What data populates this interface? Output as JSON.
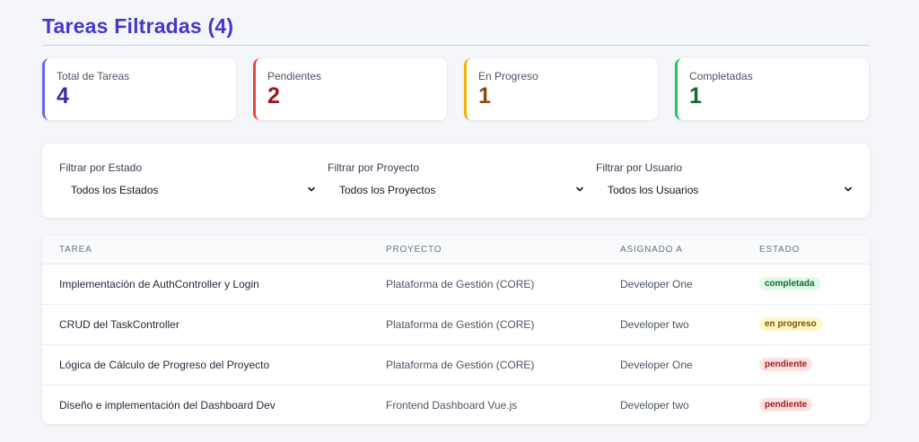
{
  "header": {
    "title": "Tareas Filtradas (4)"
  },
  "stats": [
    {
      "label": "Total de Tareas",
      "value": "4"
    },
    {
      "label": "Pendientes",
      "value": "2"
    },
    {
      "label": "En Progreso",
      "value": "1"
    },
    {
      "label": "Completadas",
      "value": "1"
    }
  ],
  "colors": {
    "title": "#4338ca",
    "total": "#6366f1",
    "pendiente": "#ef4444",
    "progreso": "#eab308",
    "completada": "#22c55e"
  },
  "filters": [
    {
      "label": "Filtrar por Estado",
      "selected": "Todos los Estados"
    },
    {
      "label": "Filtrar por Proyecto",
      "selected": "Todos los Proyectos"
    },
    {
      "label": "Filtrar por Usuario",
      "selected": "Todos los Usuarios"
    }
  ],
  "table": {
    "headers": [
      "TAREA",
      "PROYECTO",
      "ASIGNADO A",
      "ESTADO"
    ],
    "rows": [
      {
        "task": "Implementación de AuthController y Login",
        "project": "Plataforma de Gestión (CORE)",
        "assignee": "Developer One",
        "status": "completada"
      },
      {
        "task": "CRUD del TaskController",
        "project": "Plataforma de Gestión (CORE)",
        "assignee": "Developer two",
        "status": "en progreso"
      },
      {
        "task": "Lógica de Cálculo de Progreso del Proyecto",
        "project": "Plataforma de Gestión (CORE)",
        "assignee": "Developer One",
        "status": "pendiente"
      },
      {
        "task": "Diseño e implementación del Dashboard Dev",
        "project": "Frontend Dashboard Vue.js",
        "assignee": "Developer two",
        "status": "pendiente"
      }
    ]
  },
  "icons": {
    "select_chevron": "chevron-down-icon"
  }
}
